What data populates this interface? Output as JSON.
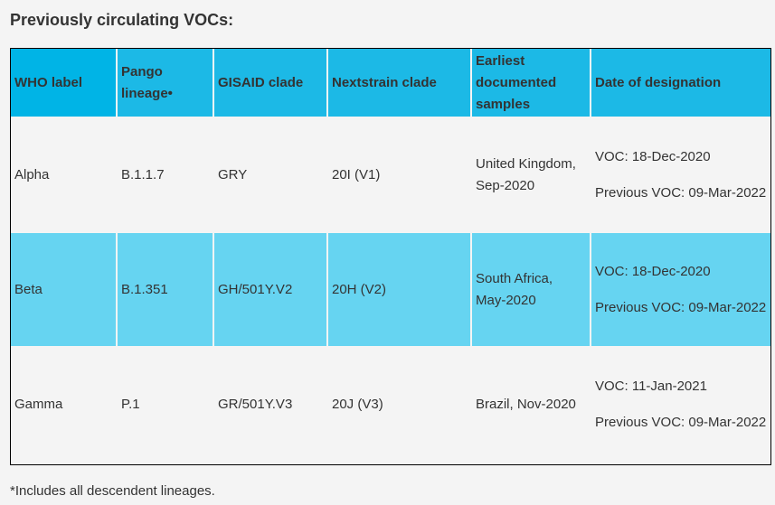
{
  "title": "Previously circulating VOCs:",
  "colors": {
    "header_bg": "#1cb9e6",
    "header_first_bg": "#00b4e6",
    "highlight_row_bg": "#66d4f1",
    "page_bg": "#f4f4f4",
    "text": "#333333"
  },
  "table": {
    "headers": {
      "who_label": "WHO label",
      "pango_lineage": "Pango lineage•",
      "gisaid_clade": "GISAID clade",
      "nextstrain_clade": "Nextstrain clade",
      "earliest_samples": "Earliest documented samples",
      "date_of_designation": "Date of designation"
    },
    "rows": [
      {
        "who_label": "Alpha",
        "pango_lineage": "B.1.1.7",
        "gisaid_clade": "GRY",
        "nextstrain_clade": "20I (V1)",
        "earliest_samples": "United Kingdom, Sep-2020",
        "voc_date": "VOC: 18-Dec-2020",
        "previous_voc_date": "Previous VOC: 09-Mar-2022"
      },
      {
        "who_label": "Beta",
        "pango_lineage": "B.1.351",
        "gisaid_clade": "GH/501Y.V2",
        "nextstrain_clade": "20H (V2)",
        "earliest_samples": "South Africa, May-2020",
        "voc_date": "VOC: 18-Dec-2020",
        "previous_voc_date": "Previous VOC: 09-Mar-2022"
      },
      {
        "who_label": "Gamma",
        "pango_lineage": "P.1",
        "gisaid_clade": "GR/501Y.V3",
        "nextstrain_clade": "20J (V3)",
        "earliest_samples": "Brazil, Nov-2020",
        "voc_date": "VOC: 11-Jan-2021",
        "previous_voc_date": "Previous VOC: 09-Mar-2022"
      }
    ]
  },
  "footnote": "*Includes all descendent lineages."
}
